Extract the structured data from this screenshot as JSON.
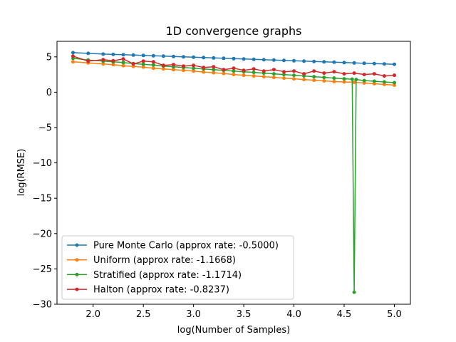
{
  "chart_data": {
    "type": "line",
    "title": "1D convergence graphs",
    "xlabel": "log(Number of Samples)",
    "ylabel": "log(RMSE)",
    "xlim": [
      1.64,
      5.16
    ],
    "ylim": [
      -30,
      7.2
    ],
    "xticks": [
      "2.0",
      "2.5",
      "3.0",
      "3.5",
      "4.0",
      "4.5",
      "5.0"
    ],
    "yticks": [
      "5",
      "0",
      "−5",
      "−10",
      "−15",
      "−20",
      "−25",
      "−30"
    ],
    "grid": false,
    "legend_position": "lower-left",
    "series": [
      {
        "name": "Pure Monte Carlo (approx rate: -0.5000)",
        "color": "#1f77b4",
        "x": [
          1.8,
          1.95,
          2.1,
          2.2,
          2.3,
          2.4,
          2.5,
          2.6,
          2.7,
          2.8,
          2.9,
          3.0,
          3.1,
          3.2,
          3.3,
          3.4,
          3.5,
          3.6,
          3.7,
          3.8,
          3.9,
          4.0,
          4.1,
          4.2,
          4.3,
          4.4,
          4.5,
          4.6,
          4.7,
          4.8,
          4.9,
          5.0
        ],
        "y": [
          5.6,
          5.5,
          5.4,
          5.35,
          5.3,
          5.25,
          5.2,
          5.15,
          5.1,
          5.05,
          5.0,
          4.95,
          4.9,
          4.85,
          4.8,
          4.75,
          4.7,
          4.65,
          4.6,
          4.55,
          4.5,
          4.45,
          4.4,
          4.35,
          4.3,
          4.25,
          4.2,
          4.15,
          4.1,
          4.05,
          4.0,
          3.95
        ]
      },
      {
        "name": "Uniform (approx rate: -1.1668)",
        "color": "#ff7f0e",
        "x": [
          1.8,
          1.95,
          2.1,
          2.2,
          2.3,
          2.4,
          2.5,
          2.6,
          2.7,
          2.8,
          2.9,
          3.0,
          3.1,
          3.2,
          3.3,
          3.4,
          3.5,
          3.6,
          3.7,
          3.8,
          3.9,
          4.0,
          4.1,
          4.2,
          4.3,
          4.4,
          4.5,
          4.6,
          4.7,
          4.8,
          4.9,
          5.0
        ],
        "y": [
          4.3,
          4.15,
          4.0,
          3.9,
          3.75,
          3.65,
          3.55,
          3.4,
          3.3,
          3.2,
          3.1,
          3.0,
          2.85,
          2.75,
          2.65,
          2.5,
          2.4,
          2.3,
          2.2,
          2.1,
          2.0,
          1.9,
          1.8,
          1.7,
          1.6,
          1.5,
          1.45,
          1.4,
          1.3,
          1.2,
          1.1,
          1.0
        ]
      },
      {
        "name": "Stratified (approx rate: -1.1714)",
        "color": "#2ca02c",
        "x": [
          1.8,
          1.95,
          2.1,
          2.2,
          2.3,
          2.4,
          2.5,
          2.6,
          2.7,
          2.8,
          2.9,
          3.0,
          3.1,
          3.2,
          3.3,
          3.4,
          3.5,
          3.6,
          3.7,
          3.8,
          3.9,
          4.0,
          4.1,
          4.2,
          4.3,
          4.4,
          4.5,
          4.58,
          4.6,
          4.62,
          4.7,
          4.8,
          4.9,
          5.0
        ],
        "y": [
          4.8,
          4.55,
          4.4,
          4.3,
          4.2,
          4.05,
          3.95,
          3.85,
          3.7,
          3.6,
          3.5,
          3.4,
          3.3,
          3.2,
          3.1,
          3.0,
          2.9,
          2.8,
          2.7,
          2.6,
          2.5,
          2.4,
          2.3,
          2.2,
          2.1,
          2.0,
          1.9,
          1.85,
          -28.3,
          1.8,
          1.65,
          1.55,
          1.45,
          1.35
        ]
      },
      {
        "name": "Halton (approx rate: -0.8237)",
        "color": "#d62728",
        "x": [
          1.8,
          1.95,
          2.1,
          2.2,
          2.3,
          2.4,
          2.5,
          2.6,
          2.7,
          2.8,
          2.9,
          3.0,
          3.1,
          3.2,
          3.3,
          3.4,
          3.5,
          3.6,
          3.7,
          3.8,
          3.9,
          4.0,
          4.1,
          4.2,
          4.3,
          4.4,
          4.5,
          4.6,
          4.7,
          4.8,
          4.9,
          5.0
        ],
        "y": [
          5.1,
          4.4,
          4.6,
          4.45,
          4.7,
          4.0,
          4.4,
          4.3,
          3.8,
          3.9,
          3.7,
          3.8,
          3.5,
          3.6,
          3.2,
          3.4,
          3.1,
          3.3,
          3.0,
          3.2,
          2.9,
          3.0,
          2.6,
          3.0,
          2.7,
          2.9,
          2.6,
          2.7,
          2.5,
          2.6,
          2.3,
          2.4
        ]
      }
    ]
  }
}
